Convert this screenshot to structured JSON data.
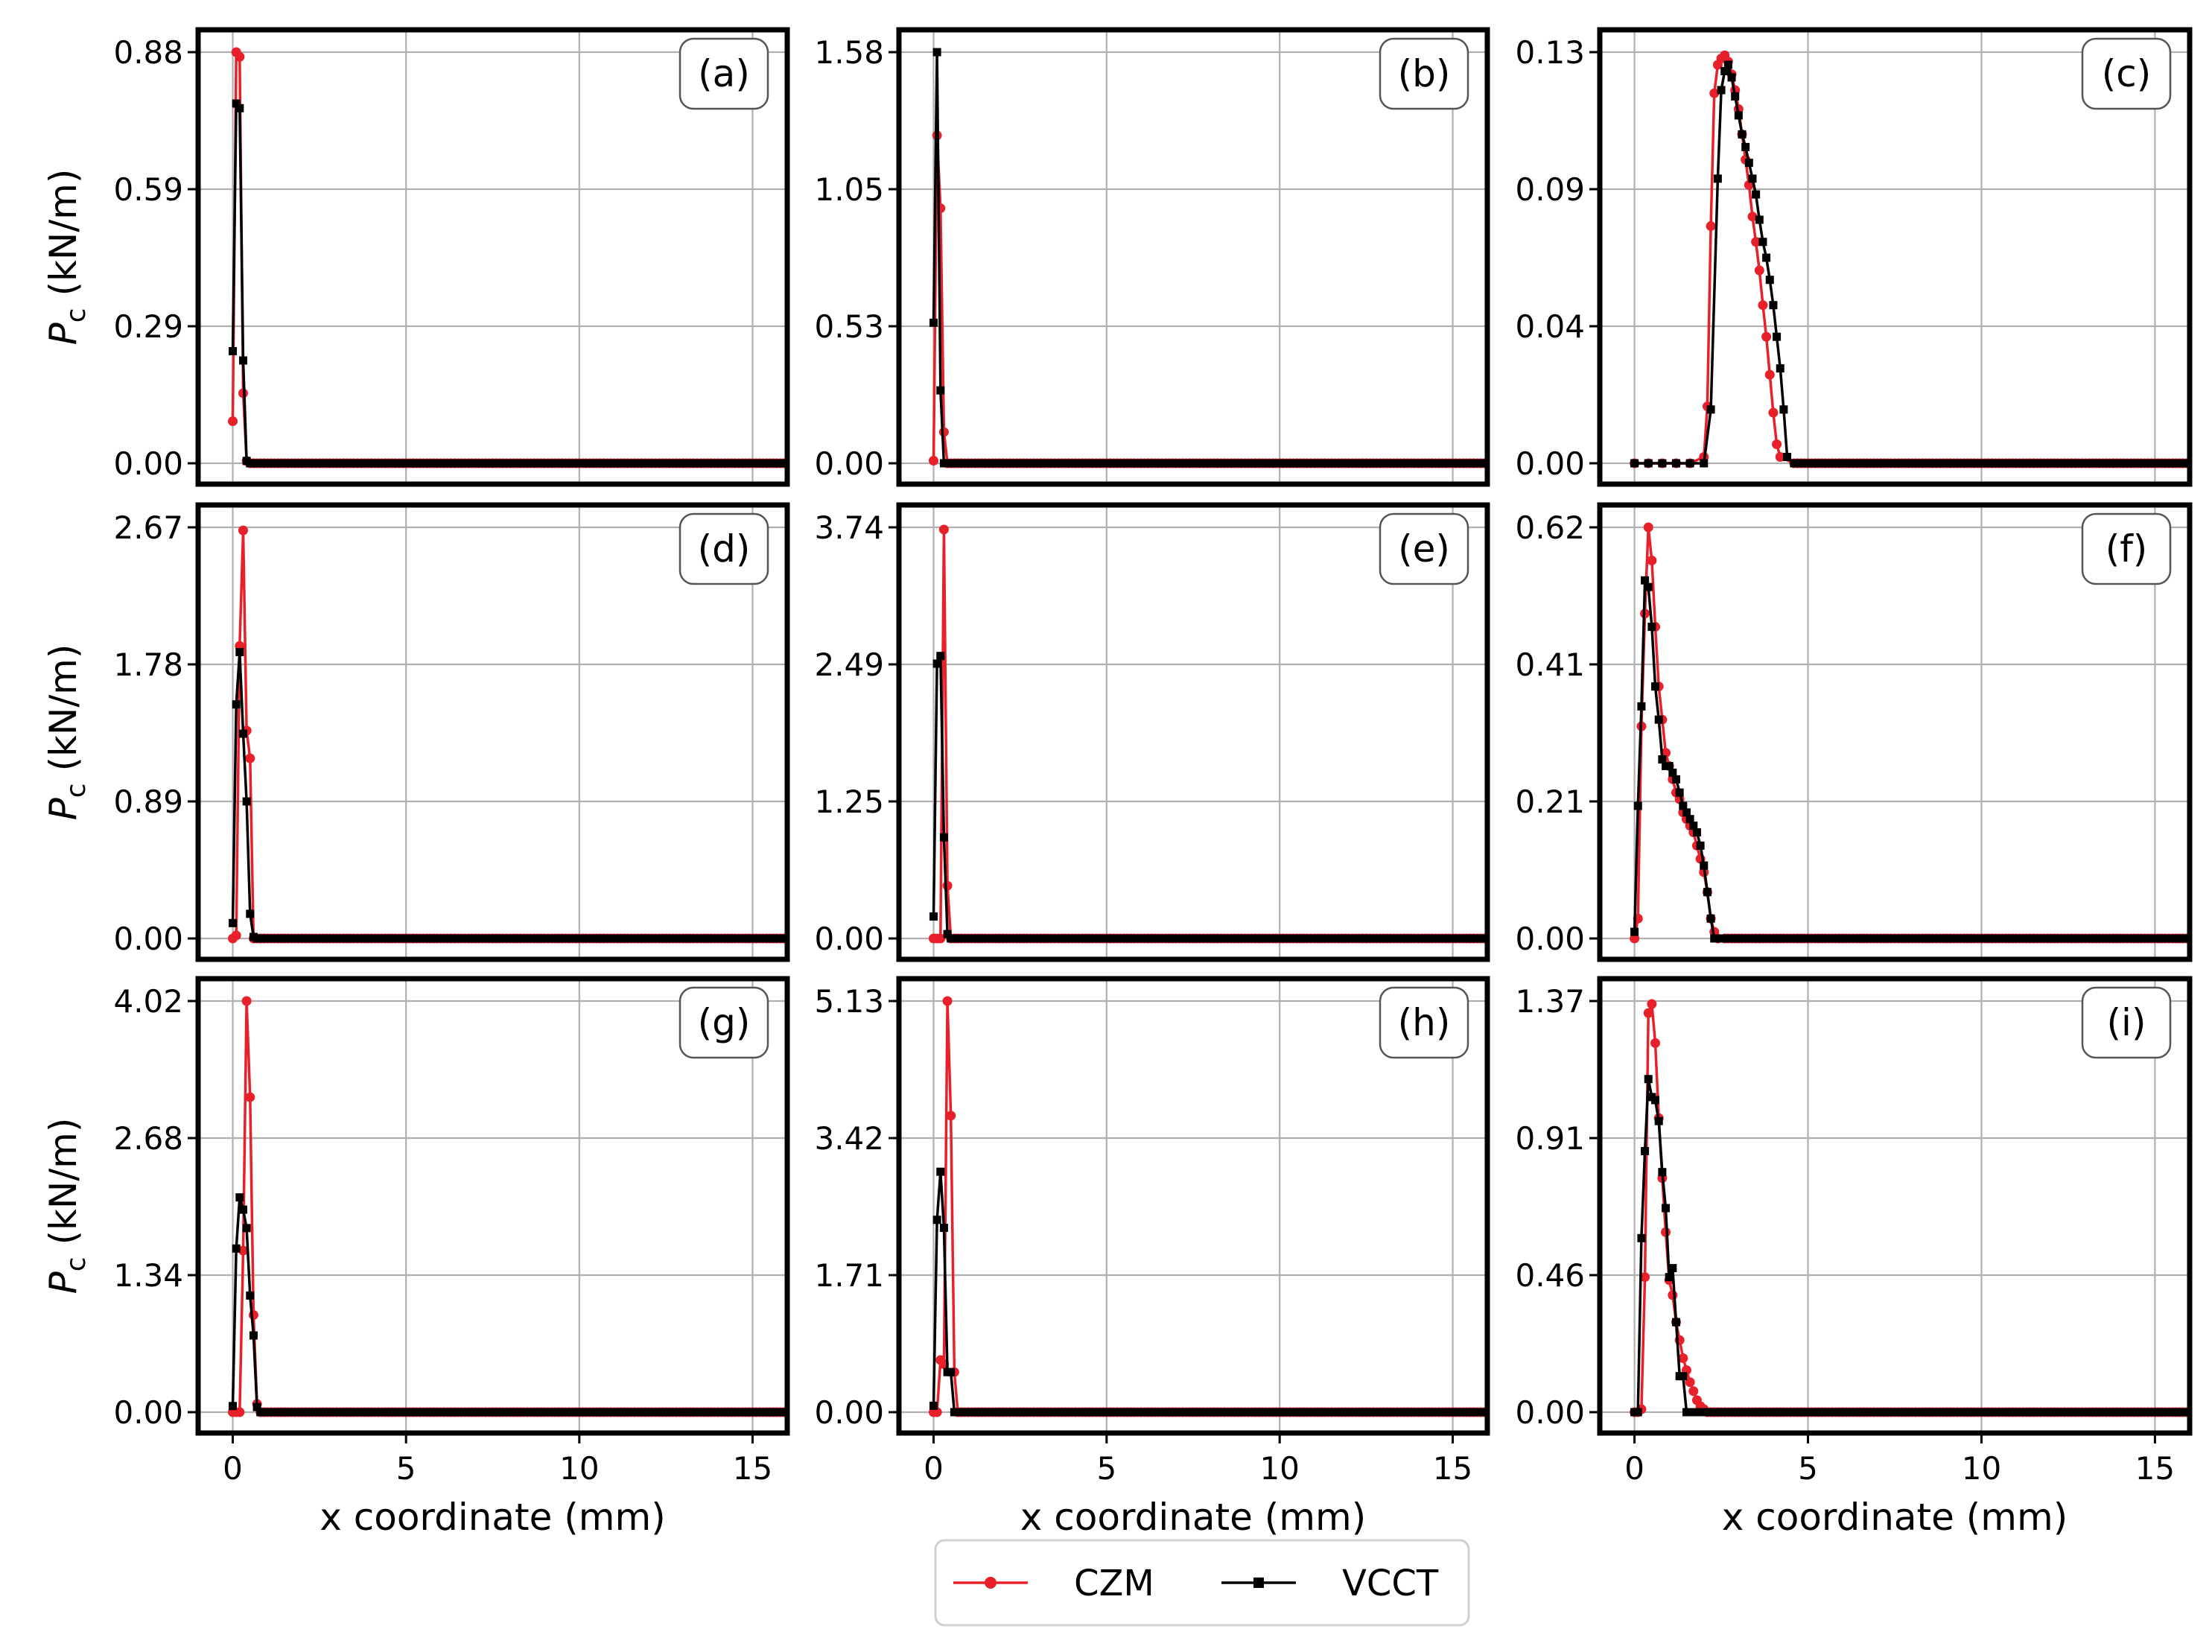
{
  "colors": {
    "czm": "#e8202a",
    "vcct": "#000000",
    "grid": "#b0b0b0",
    "frame": "#000000"
  },
  "legend": {
    "position": "bottom-center",
    "items": [
      {
        "label": "CZM",
        "marker": "circle",
        "color": "#e8202a"
      },
      {
        "label": "VCCT",
        "marker": "square",
        "color": "#000000"
      }
    ]
  },
  "chart_data": [
    {
      "type": "line",
      "tag": "(a)",
      "ylabel": "",
      "yticks": [
        "0.00",
        "0.29",
        "0.59",
        "0.88"
      ],
      "ylim": [
        0,
        0.88
      ],
      "xlim": [
        -1,
        16
      ],
      "xticks": [
        0,
        5,
        10,
        15
      ],
      "xlabel": "",
      "grid": true,
      "series": [
        {
          "name": "CZM",
          "x": [
            0.0,
            0.1,
            0.2,
            0.3,
            0.4,
            0.5,
            0.6,
            16
          ],
          "y": [
            0.09,
            0.88,
            0.87,
            0.15,
            0.005,
            0.0,
            0.0,
            0.0
          ]
        },
        {
          "name": "VCCT",
          "x": [
            0.0,
            0.1,
            0.2,
            0.3,
            0.4,
            0.5,
            16
          ],
          "y": [
            0.24,
            0.77,
            0.76,
            0.22,
            0.005,
            0.0,
            0.0
          ]
        }
      ]
    },
    {
      "type": "line",
      "tag": "(b)",
      "ylabel": "",
      "yticks": [
        "0.00",
        "0.53",
        "1.05",
        "1.58"
      ],
      "ylim": [
        0,
        1.58
      ],
      "xlim": [
        -1,
        16
      ],
      "xticks": [
        0,
        5,
        10,
        15
      ],
      "xlabel": "",
      "grid": true,
      "series": [
        {
          "name": "CZM",
          "x": [
            0.0,
            0.1,
            0.2,
            0.3,
            0.4,
            0.5,
            16
          ],
          "y": [
            0.01,
            1.26,
            0.98,
            0.12,
            0.0,
            0.0,
            0.0
          ]
        },
        {
          "name": "VCCT",
          "x": [
            0.0,
            0.1,
            0.2,
            0.3,
            0.4,
            16
          ],
          "y": [
            0.54,
            1.58,
            0.28,
            0.0,
            0.0,
            0.0
          ]
        }
      ]
    },
    {
      "type": "line",
      "tag": "(c)",
      "ylabel": "",
      "yticks": [
        "0.00",
        "0.04",
        "0.09",
        "0.13"
      ],
      "ylim": [
        0,
        0.13
      ],
      "xlim": [
        -1,
        16
      ],
      "xticks": [
        0,
        5,
        10,
        15
      ],
      "xlabel": "",
      "grid": true,
      "series": [
        {
          "name": "CZM",
          "x": [
            0.0,
            0.4,
            0.8,
            1.2,
            1.6,
            2.0,
            2.1,
            2.2,
            2.3,
            2.4,
            2.5,
            2.6,
            2.7,
            2.8,
            2.9,
            3.0,
            3.1,
            3.2,
            3.3,
            3.4,
            3.5,
            3.6,
            3.7,
            3.8,
            3.9,
            4.0,
            4.1,
            4.2,
            4.6,
            16
          ],
          "y": [
            0.0,
            0.0,
            0.0,
            0.0,
            0.0,
            0.002,
            0.018,
            0.075,
            0.117,
            0.126,
            0.128,
            0.129,
            0.127,
            0.123,
            0.118,
            0.112,
            0.104,
            0.096,
            0.088,
            0.078,
            0.07,
            0.061,
            0.05,
            0.04,
            0.028,
            0.016,
            0.006,
            0.002,
            0.0,
            0.0
          ]
        },
        {
          "name": "VCCT",
          "x": [
            0.0,
            0.4,
            0.8,
            1.2,
            1.6,
            2.0,
            2.2,
            2.4,
            2.5,
            2.6,
            2.7,
            2.8,
            2.9,
            3.0,
            3.1,
            3.2,
            3.3,
            3.4,
            3.5,
            3.6,
            3.7,
            3.8,
            3.9,
            4.0,
            4.1,
            4.2,
            4.3,
            4.4,
            4.6,
            16
          ],
          "y": [
            0.0,
            0.0,
            0.0,
            0.0,
            0.0,
            0.0,
            0.017,
            0.09,
            0.118,
            0.124,
            0.126,
            0.122,
            0.116,
            0.11,
            0.104,
            0.1,
            0.095,
            0.09,
            0.085,
            0.077,
            0.07,
            0.065,
            0.058,
            0.05,
            0.04,
            0.03,
            0.017,
            0.002,
            0.0,
            0.0
          ]
        }
      ]
    },
    {
      "type": "line",
      "tag": "(d)",
      "ylabel": "",
      "yticks": [
        "0.00",
        "0.89",
        "1.78",
        "2.67"
      ],
      "ylim": [
        0,
        2.67
      ],
      "xlim": [
        -1,
        16
      ],
      "xticks": [
        0,
        5,
        10,
        15
      ],
      "xlabel": "",
      "grid": true,
      "series": [
        {
          "name": "CZM",
          "x": [
            0.0,
            0.1,
            0.2,
            0.3,
            0.4,
            0.5,
            0.6,
            0.7,
            16
          ],
          "y": [
            0.0,
            0.02,
            1.9,
            2.65,
            1.35,
            1.17,
            0.0,
            0.0,
            0.0
          ]
        },
        {
          "name": "VCCT",
          "x": [
            0.0,
            0.1,
            0.2,
            0.3,
            0.4,
            0.5,
            0.6,
            0.7,
            16
          ],
          "y": [
            0.1,
            1.52,
            1.86,
            1.33,
            0.89,
            0.16,
            0.01,
            0.0,
            0.0
          ]
        }
      ]
    },
    {
      "type": "line",
      "tag": "(e)",
      "ylabel": "",
      "yticks": [
        "0.00",
        "1.25",
        "2.49",
        "3.74"
      ],
      "ylim": [
        0,
        3.74
      ],
      "xlim": [
        -1,
        16
      ],
      "xticks": [
        0,
        5,
        10,
        15
      ],
      "xlabel": "",
      "grid": true,
      "series": [
        {
          "name": "CZM",
          "x": [
            0.0,
            0.1,
            0.2,
            0.3,
            0.4,
            0.5,
            0.6,
            16
          ],
          "y": [
            0.0,
            0.0,
            0.0,
            3.72,
            0.48,
            0.0,
            0.0,
            0.0
          ]
        },
        {
          "name": "VCCT",
          "x": [
            0.0,
            0.1,
            0.2,
            0.3,
            0.4,
            0.5,
            16
          ],
          "y": [
            0.2,
            2.5,
            2.57,
            0.92,
            0.04,
            0.0,
            0.0
          ]
        }
      ]
    },
    {
      "type": "line",
      "tag": "(f)",
      "ylabel": "",
      "yticks": [
        "0.00",
        "0.21",
        "0.41",
        "0.62"
      ],
      "ylim": [
        0,
        0.62
      ],
      "xlim": [
        -1,
        16
      ],
      "xticks": [
        0,
        5,
        10,
        15
      ],
      "xlabel": "",
      "grid": true,
      "series": [
        {
          "name": "CZM",
          "x": [
            0.0,
            0.1,
            0.2,
            0.3,
            0.4,
            0.5,
            0.6,
            0.7,
            0.8,
            0.9,
            1.0,
            1.1,
            1.2,
            1.3,
            1.4,
            1.5,
            1.6,
            1.7,
            1.8,
            1.9,
            2.0,
            2.1,
            2.2,
            2.3,
            2.4,
            2.6,
            16
          ],
          "y": [
            0.0,
            0.03,
            0.32,
            0.49,
            0.62,
            0.57,
            0.47,
            0.38,
            0.33,
            0.28,
            0.26,
            0.24,
            0.22,
            0.21,
            0.19,
            0.18,
            0.17,
            0.16,
            0.14,
            0.12,
            0.1,
            0.07,
            0.03,
            0.01,
            0.0,
            0.0,
            0.0
          ]
        },
        {
          "name": "VCCT",
          "x": [
            0.0,
            0.1,
            0.2,
            0.3,
            0.4,
            0.5,
            0.6,
            0.7,
            0.8,
            0.9,
            1.0,
            1.1,
            1.2,
            1.3,
            1.4,
            1.5,
            1.6,
            1.7,
            1.8,
            1.9,
            2.0,
            2.1,
            2.2,
            2.3,
            2.4,
            2.6,
            16
          ],
          "y": [
            0.01,
            0.2,
            0.35,
            0.54,
            0.53,
            0.47,
            0.38,
            0.33,
            0.27,
            0.26,
            0.26,
            0.25,
            0.24,
            0.22,
            0.2,
            0.19,
            0.18,
            0.17,
            0.16,
            0.14,
            0.11,
            0.07,
            0.03,
            0.0,
            0.0,
            0.0,
            0.0
          ]
        }
      ]
    },
    {
      "type": "line",
      "tag": "(g)",
      "ylabel": "",
      "yticks": [
        "0.00",
        "1.34",
        "2.68",
        "4.02"
      ],
      "ylim": [
        0,
        4.02
      ],
      "xlim": [
        -1,
        16
      ],
      "xticks": [
        0,
        5,
        10,
        15
      ],
      "xlabel": "x coordinate (mm)",
      "grid": true,
      "series": [
        {
          "name": "CZM",
          "x": [
            0.0,
            0.1,
            0.2,
            0.3,
            0.4,
            0.5,
            0.6,
            0.7,
            0.8,
            16
          ],
          "y": [
            0.0,
            0.0,
            0.0,
            1.58,
            4.02,
            3.08,
            0.95,
            0.08,
            0.0,
            0.0
          ]
        },
        {
          "name": "VCCT",
          "x": [
            0.0,
            0.1,
            0.2,
            0.3,
            0.4,
            0.5,
            0.6,
            0.7,
            0.8,
            16
          ],
          "y": [
            0.06,
            1.6,
            2.1,
            1.98,
            1.8,
            1.14,
            0.75,
            0.05,
            0.0,
            0.0
          ]
        }
      ]
    },
    {
      "type": "line",
      "tag": "(h)",
      "ylabel": "",
      "yticks": [
        "0.00",
        "1.71",
        "3.42",
        "5.13"
      ],
      "ylim": [
        0,
        5.13
      ],
      "xlim": [
        -1,
        16
      ],
      "xticks": [
        0,
        5,
        10,
        15
      ],
      "xlabel": "x coordinate (mm)",
      "grid": true,
      "series": [
        {
          "name": "CZM",
          "x": [
            0.0,
            0.1,
            0.2,
            0.3,
            0.4,
            0.5,
            0.6,
            0.7,
            16
          ],
          "y": [
            0.0,
            0.0,
            0.65,
            0.6,
            5.13,
            3.7,
            0.5,
            0.0,
            0.0
          ]
        },
        {
          "name": "VCCT",
          "x": [
            0.0,
            0.1,
            0.2,
            0.3,
            0.4,
            0.5,
            0.6,
            0.7,
            16
          ],
          "y": [
            0.08,
            2.4,
            3.0,
            2.3,
            0.5,
            0.5,
            0.0,
            0.0,
            0.0
          ]
        }
      ]
    },
    {
      "type": "line",
      "tag": "(i)",
      "ylabel": "",
      "yticks": [
        "0.00",
        "0.46",
        "0.91",
        "1.37"
      ],
      "ylim": [
        0,
        1.37
      ],
      "xlim": [
        -1,
        16
      ],
      "xticks": [
        0,
        5,
        10,
        15
      ],
      "xlabel": "x coordinate (mm)",
      "grid": true,
      "series": [
        {
          "name": "CZM",
          "x": [
            0.0,
            0.1,
            0.2,
            0.3,
            0.4,
            0.5,
            0.6,
            0.7,
            0.8,
            0.9,
            1.0,
            1.1,
            1.2,
            1.3,
            1.4,
            1.5,
            1.6,
            1.7,
            1.8,
            1.9,
            2.0,
            2.1,
            2.2,
            16
          ],
          "y": [
            0.0,
            0.0,
            0.01,
            0.45,
            1.33,
            1.36,
            1.23,
            0.98,
            0.78,
            0.6,
            0.44,
            0.39,
            0.3,
            0.24,
            0.18,
            0.14,
            0.1,
            0.07,
            0.04,
            0.02,
            0.01,
            0.0,
            0.0,
            0.0
          ]
        },
        {
          "name": "VCCT",
          "x": [
            0.0,
            0.1,
            0.2,
            0.3,
            0.4,
            0.5,
            0.6,
            0.7,
            0.8,
            0.9,
            1.0,
            1.1,
            1.2,
            1.3,
            1.4,
            1.5,
            1.6,
            1.7,
            1.8,
            16
          ],
          "y": [
            0.0,
            0.0,
            0.58,
            0.87,
            1.11,
            1.05,
            1.04,
            0.97,
            0.8,
            0.68,
            0.45,
            0.48,
            0.3,
            0.12,
            0.12,
            0.0,
            0.0,
            0.0,
            0.0,
            0.0
          ]
        }
      ]
    }
  ],
  "shared": {
    "ylabel_prefix": "P",
    "ylabel_sub": "c",
    "ylabel_suffix": " (kN/m)"
  }
}
